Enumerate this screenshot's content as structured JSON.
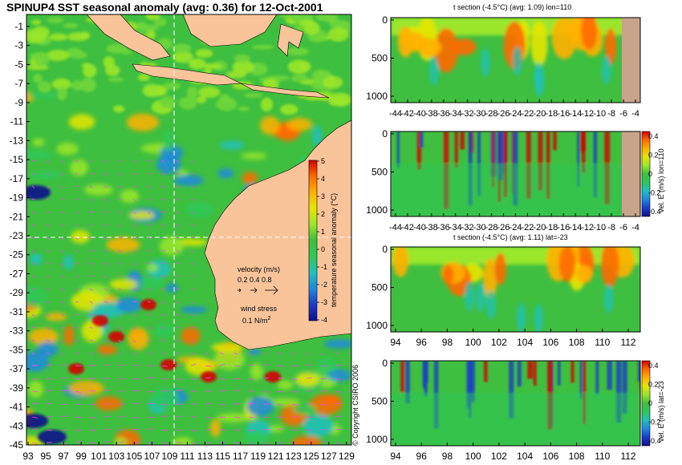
{
  "title": "SPINUP4 SST seasonal anomaly (avg: 0.36) for 12-Oct-2001",
  "colors": {
    "ocean_base": "#3fbf3f",
    "land": "#f9c49a",
    "land_section": "#c8a48a",
    "warm": "#ff8c1a",
    "hot": "#d40000",
    "cool": "#20a0e0",
    "cold": "#1010a0",
    "vector": "#ff40ff",
    "guide_line": "#ffffff"
  },
  "colormap": [
    "#10108c",
    "#1a3cc8",
    "#1e88e0",
    "#20c0c0",
    "#2ec85a",
    "#3fbf3f",
    "#9ae62a",
    "#e6e600",
    "#ffb000",
    "#ff6a00",
    "#d40000"
  ],
  "main_map": {
    "lat_ticks": [
      "-1",
      "-3",
      "-5",
      "-7",
      "-9",
      "-11",
      "-13",
      "-15",
      "-17",
      "-19",
      "-21",
      "-23",
      "-25",
      "-27",
      "-29",
      "-31",
      "-33",
      "-35",
      "-37",
      "-39",
      "-41",
      "-43",
      "-45"
    ],
    "lon_ticks": [
      "93",
      "95",
      "97",
      "99",
      "101",
      "103",
      "105",
      "107",
      "109",
      "111",
      "113",
      "115",
      "117",
      "119",
      "121",
      "123",
      "125",
      "127",
      "129"
    ],
    "section_lon": 110,
    "section_lat": -23,
    "colorbar": {
      "label": "temperature seasonal anomaly (°C)",
      "ticks": [
        "5",
        "4",
        "3",
        "2",
        "1",
        "0",
        "-1",
        "-2",
        "-3",
        "-4"
      ]
    },
    "velocity_legend": {
      "title": "velocity (m/s)",
      "values": "0.2 0.4 0.8"
    },
    "wind_legend": {
      "title": "wind stress",
      "value": "0.1 N/m",
      "unit_exp": "2"
    }
  },
  "sections": [
    {
      "id": "t-lon",
      "title": "t section (-4.5°C) (avg: 1.09) lon=110",
      "y_ticks": [
        "0",
        "500",
        "1000"
      ],
      "x_ticks": [
        "-44",
        "-42",
        "-40",
        "-38",
        "-36",
        "-34",
        "-32",
        "-30",
        "-28",
        "-26",
        "-24",
        "-22",
        "-20",
        "-18",
        "-16",
        "-14",
        "-12",
        "-10",
        "-8",
        "-6",
        "-4"
      ]
    },
    {
      "id": "v-lon",
      "title": "",
      "colorbar_label": "vel. E (m/s) lon=110",
      "colorbar_ticks": [
        "0.4",
        "0.2",
        "0",
        "-0.2",
        "-0.4"
      ],
      "y_ticks": [
        "0",
        "500",
        "1000"
      ],
      "x_ticks": [
        "-44",
        "-42",
        "-40",
        "-38",
        "-36",
        "-34",
        "-32",
        "-30",
        "-28",
        "-26",
        "-24",
        "-22",
        "-20",
        "-18",
        "-16",
        "-14",
        "-12",
        "-10",
        "-8",
        "-6",
        "-4"
      ]
    },
    {
      "id": "t-lat",
      "title": "t section (-4.5°C) (avg: 1.11) lat=-23",
      "y_ticks": [
        "0",
        "500",
        "1000"
      ],
      "x_ticks": [
        "94",
        "96",
        "98",
        "100",
        "102",
        "104",
        "106",
        "108",
        "110",
        "112"
      ]
    },
    {
      "id": "v-lat",
      "title": "",
      "colorbar_label": "vel. E (m/s) lat=-23",
      "colorbar_ticks": [
        "0.4",
        "0.2",
        "0",
        "-0.2",
        "-0.4"
      ],
      "y_ticks": [
        "0",
        "500",
        "1000"
      ],
      "x_ticks": [
        "94",
        "96",
        "98",
        "100",
        "102",
        "104",
        "106",
        "108",
        "110",
        "112"
      ]
    }
  ],
  "copyright": "© Copyright CSIRO 2006",
  "chart_data": [
    {
      "type": "heatmap",
      "title": "SPINUP4 SST seasonal anomaly (avg: 0.36) for 12-Oct-2001",
      "xlabel": "",
      "ylabel": "",
      "xlim": [
        93,
        130
      ],
      "ylim": [
        -45,
        0
      ],
      "colorbar_label": "temperature seasonal anomaly (°C)",
      "colorbar_range": [
        -4,
        5
      ],
      "grid": false
    },
    {
      "type": "heatmap",
      "title": "t section (-4.5°C) (avg: 1.09) lon=110",
      "xlim": [
        -45,
        -3
      ],
      "ylim": [
        1050,
        0
      ],
      "grid": false
    },
    {
      "type": "heatmap",
      "title": "",
      "colorbar_label": "vel. E (m/s) lon=110",
      "colorbar_range": [
        -0.4,
        0.4
      ],
      "xlim": [
        -45,
        -3
      ],
      "ylim": [
        1050,
        0
      ],
      "grid": false
    },
    {
      "type": "heatmap",
      "title": "t section (-4.5°C) (avg: 1.11) lat=-23",
      "xlim": [
        93,
        113
      ],
      "ylim": [
        1050,
        0
      ],
      "grid": false
    },
    {
      "type": "heatmap",
      "title": "",
      "colorbar_label": "vel. E (m/s) lat=-23",
      "colorbar_range": [
        -0.4,
        0.4
      ],
      "xlim": [
        93,
        113
      ],
      "ylim": [
        1050,
        0
      ],
      "grid": false
    }
  ]
}
